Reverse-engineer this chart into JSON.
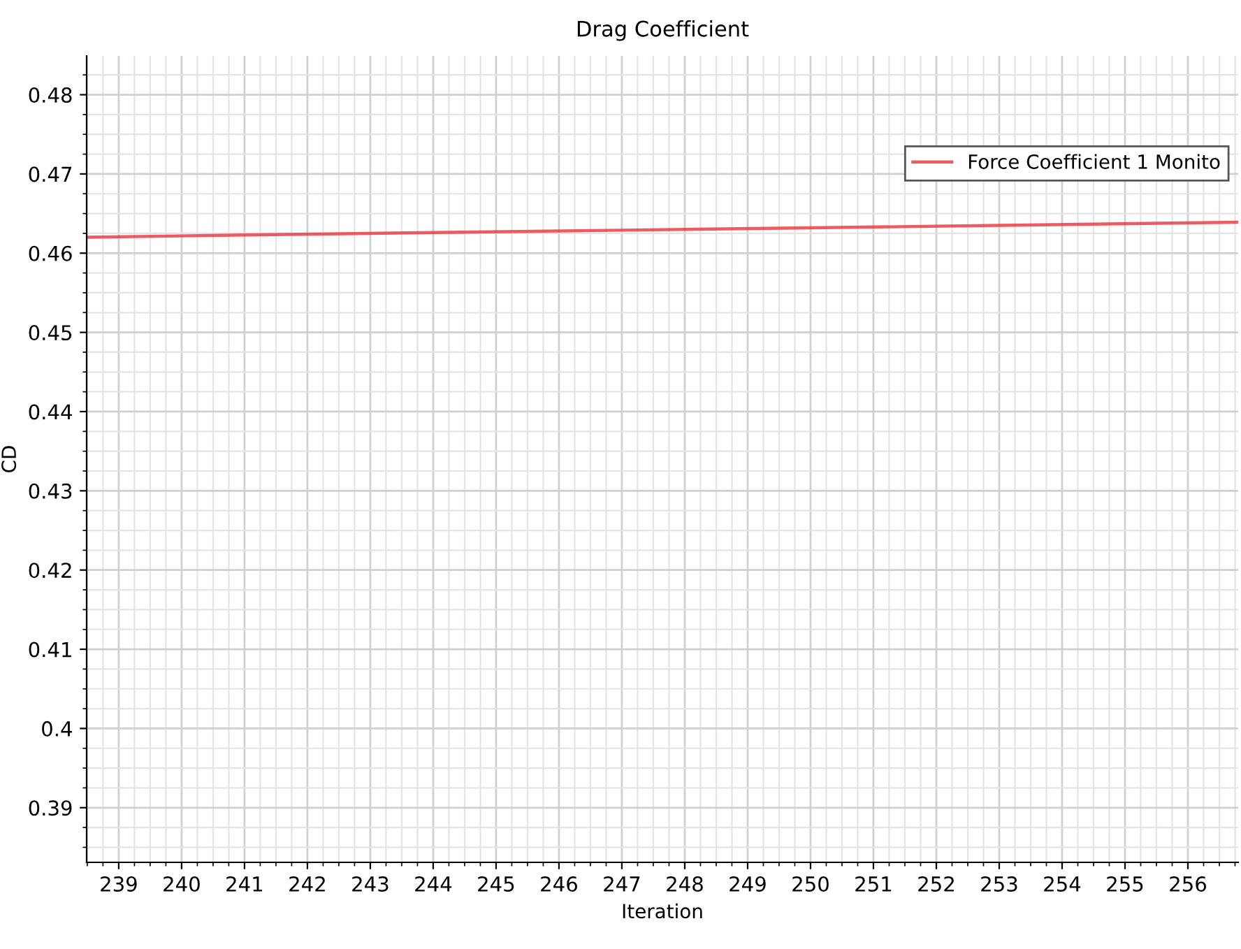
{
  "chart_data": {
    "type": "line",
    "title": "Drag Coefficient",
    "xlabel": "Iteration",
    "ylabel": "CD",
    "series": [
      {
        "name": "Force Coefficient 1 Monito",
        "color": "#e8323c",
        "x": [
          238.5,
          241,
          244,
          247,
          250,
          253,
          256.8
        ],
        "values": [
          0.462,
          0.4623,
          0.4626,
          0.4629,
          0.4632,
          0.4635,
          0.4639
        ]
      }
    ],
    "xlim": [
      238.49,
      256.8
    ],
    "xticks": [
      239,
      240,
      241,
      242,
      243,
      244,
      245,
      246,
      247,
      248,
      249,
      250,
      251,
      252,
      253,
      254,
      255,
      256
    ],
    "ylim": [
      0.3831,
      0.4849
    ],
    "yticks": [
      0.39,
      0.4,
      0.41,
      0.42,
      0.43,
      0.44,
      0.45,
      0.46,
      0.47,
      0.48
    ],
    "grid": true,
    "legend": "top right",
    "marker": "none",
    "line_style": "solid"
  }
}
